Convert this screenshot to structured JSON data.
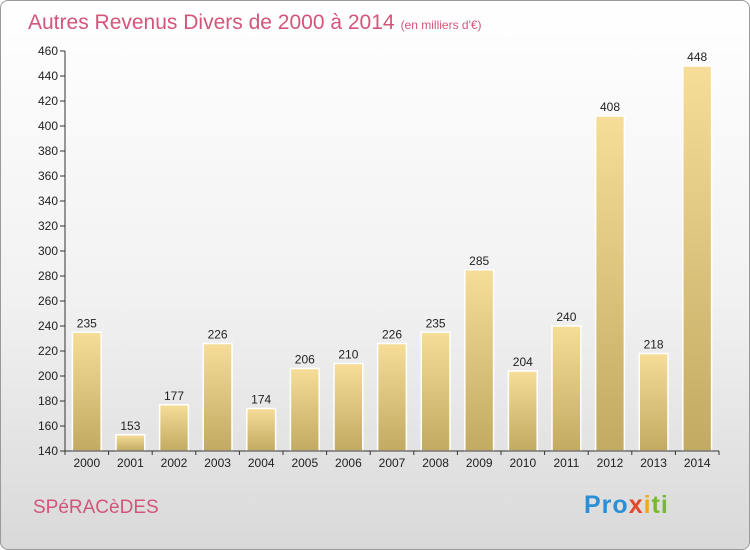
{
  "chart_data": {
    "type": "bar",
    "title": "Autres Revenus Divers de 2000 à 2014",
    "unit_label": "(en milliers d'€)",
    "categories": [
      "2000",
      "2001",
      "2002",
      "2003",
      "2004",
      "2005",
      "2006",
      "2007",
      "2008",
      "2009",
      "2010",
      "2011",
      "2012",
      "2013",
      "2014"
    ],
    "values": [
      235,
      153,
      177,
      226,
      174,
      206,
      210,
      226,
      235,
      285,
      204,
      240,
      408,
      218,
      448
    ],
    "ylim": [
      140,
      460
    ],
    "ytick_step": 20,
    "grid": false,
    "bar_color": "#e8c97a"
  },
  "footer": {
    "town": "SPéRACèDES",
    "logo": {
      "p1": "Pro",
      "p2": "x",
      "p3": "i",
      "p4": "ti"
    }
  }
}
